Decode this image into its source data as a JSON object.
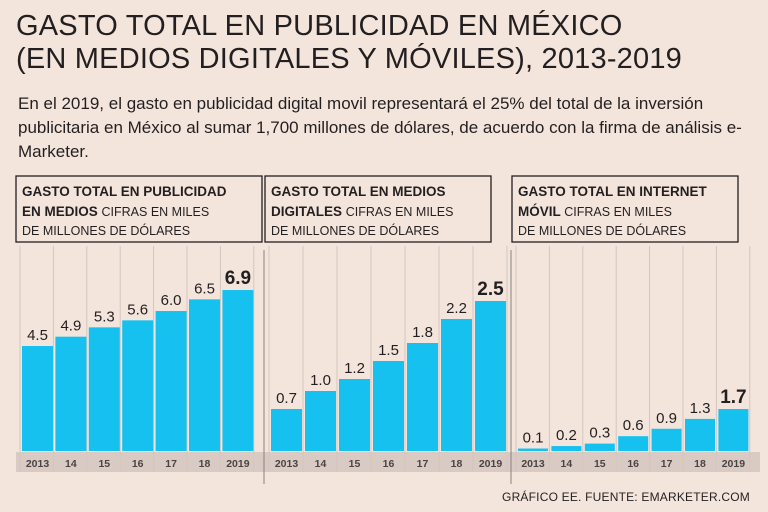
{
  "header": {
    "title_line1": "GASTO TOTAL EN PUBLICIDAD EN MÉXICO",
    "title_line2": "(EN MEDIOS DIGITALES Y MÓVILES), 2013-2019",
    "subtitle": "En el 2019, el gasto en publicidad digital movil representará el 25% del total de la inversión publicitaria en México al sumar 1,700 millones de dólares, de acuerdo con la firma de análisis e-Marketer."
  },
  "footer": {
    "source": "GRÁFICO EE. FUENTE: EMARKETER.COM"
  },
  "colors": {
    "bar": "#16c1f0",
    "background": "#f3e5dc",
    "axis_band": "#d9cbc3",
    "text": "#231f20"
  },
  "chart_data": [
    {
      "type": "bar",
      "title_bold": [
        "GASTO TOTAL EN PUBLICIDAD",
        "EN MEDIOS"
      ],
      "title_regular": [
        "CIFRAS EN MILES",
        "DE MILLONES DE DÓLARES"
      ],
      "categories": [
        "2013",
        "14",
        "15",
        "16",
        "17",
        "18",
        "2019"
      ],
      "values": [
        4.5,
        4.9,
        5.3,
        5.6,
        6.0,
        6.5,
        6.9
      ],
      "value_labels": [
        "4.5",
        "4.9",
        "5.3",
        "5.6",
        "6.0",
        "6.5",
        "6.9"
      ],
      "ylim": [
        0,
        7.5
      ],
      "xlabel": "",
      "ylabel": ""
    },
    {
      "type": "bar",
      "title_bold": [
        "GASTO TOTAL EN MEDIOS",
        "DIGITALES"
      ],
      "title_regular": [
        "CIFRAS EN MILES",
        "DE MILLONES DE DÓLARES"
      ],
      "categories": [
        "2013",
        "14",
        "15",
        "16",
        "17",
        "18",
        "2019"
      ],
      "values": [
        0.7,
        1.0,
        1.2,
        1.5,
        1.8,
        2.2,
        2.5
      ],
      "value_labels": [
        "0.7",
        "1.0",
        "1.2",
        "1.5",
        "1.8",
        "2.2",
        "2.5"
      ],
      "ylim": [
        0,
        3.2
      ],
      "xlabel": "",
      "ylabel": ""
    },
    {
      "type": "bar",
      "title_bold": [
        "GASTO TOTAL EN INTERNET",
        "MÓVIL"
      ],
      "title_regular": [
        "CIFRAS EN MILES",
        "DE MILLONES DE DÓLARES"
      ],
      "categories": [
        "2013",
        "14",
        "15",
        "16",
        "17",
        "18",
        "2019"
      ],
      "values": [
        0.1,
        0.2,
        0.3,
        0.6,
        0.9,
        1.3,
        1.7
      ],
      "value_labels": [
        "0.1",
        "0.2",
        "0.3",
        "0.6",
        "0.9",
        "1.3",
        "1.7"
      ],
      "ylim": [
        0,
        3.2
      ],
      "xlabel": "",
      "ylabel": ""
    }
  ]
}
